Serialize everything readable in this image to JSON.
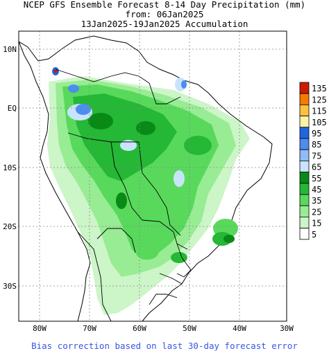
{
  "title": {
    "line1": "NCEP GFS Ensemble Forecast 8-14 Day Precipitation (mm)",
    "line2": "from: 06Jan2025",
    "line3": "13Jan2025-19Jan2025 Accumulation"
  },
  "footer": "Bias correction based on last 30-day forecast error",
  "lat_ticks": [
    "10N",
    "EQ",
    "10S",
    "20S",
    "30S"
  ],
  "lon_ticks": [
    "80W",
    "70W",
    "60W",
    "50W",
    "40W",
    "30W"
  ],
  "legend": [
    {
      "label": "135",
      "color": "#cc1a00"
    },
    {
      "label": "125",
      "color": "#f57a00"
    },
    {
      "label": "115",
      "color": "#fcc23f"
    },
    {
      "label": "105",
      "color": "#fcf1a8"
    },
    {
      "label": "95",
      "color": "#2166de"
    },
    {
      "label": "85",
      "color": "#4d8df0"
    },
    {
      "label": "75",
      "color": "#8fbcf6"
    },
    {
      "label": "65",
      "color": "#c8e4fc"
    },
    {
      "label": "55",
      "color": "#098a16"
    },
    {
      "label": "45",
      "color": "#25b736"
    },
    {
      "label": "35",
      "color": "#58d95c"
    },
    {
      "label": "25",
      "color": "#98ec94"
    },
    {
      "label": "15",
      "color": "#ccf5c8"
    },
    {
      "label": "5",
      "color": "#ffffff"
    }
  ]
}
